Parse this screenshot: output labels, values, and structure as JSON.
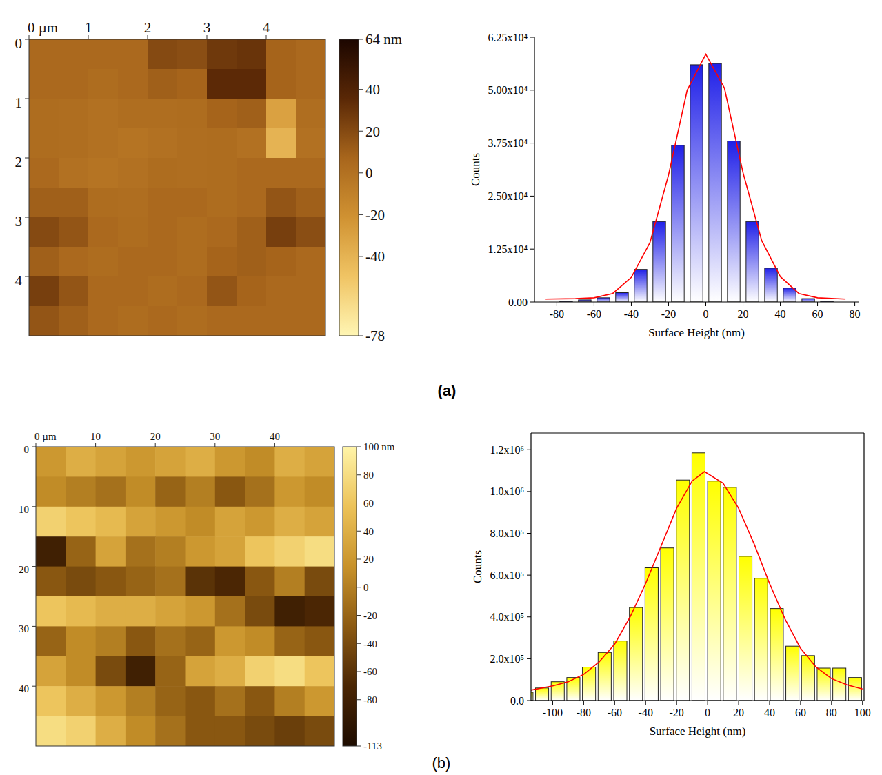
{
  "panel_labels": [
    "(a)",
    "(b)"
  ],
  "chart_data": [
    {
      "type": "heatmap",
      "xlim": [
        0,
        5
      ],
      "xticks": [
        {
          "value": 0,
          "label": "0 µm"
        },
        1,
        2,
        3,
        4
      ],
      "ylim": [
        0,
        5
      ],
      "yticks": [
        0,
        1,
        2,
        3,
        4
      ],
      "zlim": [
        -78,
        64
      ],
      "zticks": [
        {
          "value": 64,
          "label": "64 nm"
        },
        40,
        20,
        0,
        -20,
        -40,
        -78
      ],
      "colors": [
        "#fff6b4",
        "#f0c464",
        "#d09232",
        "#a8661c",
        "#5a2806",
        "#1c0600"
      ],
      "z": [
        [
          5,
          5,
          5,
          5,
          20,
          18,
          28,
          30,
          8,
          5
        ],
        [
          5,
          5,
          3,
          5,
          10,
          8,
          35,
          35,
          8,
          5
        ],
        [
          3,
          2,
          0,
          2,
          2,
          3,
          8,
          10,
          -30,
          2
        ],
        [
          3,
          2,
          0,
          -2,
          0,
          2,
          3,
          0,
          -40,
          0
        ],
        [
          5,
          0,
          -2,
          0,
          3,
          2,
          3,
          5,
          5,
          5
        ],
        [
          10,
          10,
          3,
          2,
          5,
          5,
          3,
          5,
          15,
          10
        ],
        [
          20,
          15,
          5,
          3,
          5,
          3,
          5,
          10,
          25,
          18
        ],
        [
          10,
          5,
          3,
          5,
          5,
          3,
          8,
          10,
          8,
          5
        ],
        [
          25,
          15,
          5,
          5,
          3,
          5,
          15,
          8,
          5,
          5
        ],
        [
          15,
          10,
          5,
          3,
          5,
          3,
          5,
          5,
          5,
          5
        ]
      ]
    },
    {
      "type": "histogram",
      "x_label": "Surface Height (nm)",
      "y_label": "Counts",
      "bins": [
        -80,
        -70,
        -60,
        -50,
        -40,
        -30,
        -20,
        -10,
        0,
        10,
        20,
        30,
        40,
        50,
        60,
        70
      ],
      "series": [
        {
          "type": "bar",
          "color": "#2020e8",
          "values": [
            200,
            500,
            1000,
            2200,
            7700,
            19000,
            37000,
            56000,
            56300,
            38000,
            19000,
            8000,
            3300,
            800,
            200
          ]
        },
        {
          "type": "line",
          "color": "#ff0000",
          "x": [
            -86,
            -70,
            -60,
            -50,
            -40,
            -30,
            -20,
            -10,
            0,
            10,
            20,
            30,
            40,
            50,
            60,
            75
          ],
          "values": [
            700,
            800,
            1000,
            2000,
            5800,
            14000,
            30000,
            50000,
            58500,
            50500,
            30500,
            14500,
            6000,
            2000,
            1000,
            700
          ]
        }
      ],
      "xlim": [
        -92,
        82
      ],
      "xticks": [
        -80,
        -60,
        -40,
        -20,
        0,
        20,
        40,
        60,
        80
      ],
      "ylim": [
        0,
        62500
      ],
      "yticks": [
        {
          "value": 0,
          "label": "0.00"
        },
        {
          "value": 12500,
          "label": "1.25x10⁴"
        },
        {
          "value": 25000,
          "label": "2.50x10⁴"
        },
        {
          "value": 37500,
          "label": "3.75x10⁴"
        },
        {
          "value": 50000,
          "label": "5.00x10⁴"
        },
        {
          "value": 62500,
          "label": "6.25x10⁴"
        }
      ]
    },
    {
      "type": "heatmap",
      "xlim": [
        0,
        50
      ],
      "xticks": [
        {
          "value": 0,
          "label": "0 µm"
        },
        10,
        20,
        30,
        40
      ],
      "ylim": [
        0,
        50
      ],
      "yticks": [
        0,
        10,
        20,
        30,
        40
      ],
      "zlim": [
        -113,
        100
      ],
      "zticks": [
        {
          "value": 100,
          "label": "100 nm"
        },
        80,
        60,
        40,
        20,
        0,
        -20,
        -40,
        -60,
        -80,
        -113
      ],
      "colors": [
        "#1e0c00",
        "#4a2604",
        "#8c5a12",
        "#c8922a",
        "#ecc258",
        "#fff4a8"
      ],
      "z": [
        [
          20,
          40,
          30,
          20,
          30,
          40,
          20,
          10,
          40,
          30
        ],
        [
          10,
          0,
          -10,
          10,
          -20,
          0,
          -30,
          -10,
          20,
          10
        ],
        [
          70,
          60,
          50,
          30,
          20,
          10,
          30,
          20,
          40,
          30
        ],
        [
          -80,
          -20,
          30,
          -10,
          0,
          20,
          30,
          60,
          70,
          80
        ],
        [
          -30,
          -40,
          -30,
          -20,
          -10,
          -60,
          -70,
          -30,
          0,
          -40
        ],
        [
          60,
          50,
          40,
          40,
          30,
          20,
          -10,
          -40,
          -80,
          -70
        ],
        [
          -20,
          10,
          0,
          -30,
          -10,
          -20,
          20,
          10,
          -20,
          -30
        ],
        [
          30,
          10,
          -40,
          -80,
          -20,
          30,
          40,
          70,
          80,
          60
        ],
        [
          60,
          40,
          20,
          0,
          -20,
          -30,
          -10,
          -30,
          0,
          20
        ],
        [
          80,
          70,
          40,
          10,
          -10,
          -30,
          -30,
          -40,
          -50,
          -40
        ]
      ]
    },
    {
      "type": "histogram",
      "x_label": "Surface Height (nm)",
      "y_label": "Counts",
      "bins": [
        -122,
        -111.9,
        -101.8,
        -91.7,
        -81.6,
        -71.5,
        -61.4,
        -51.3,
        -41.2,
        -31.1,
        -21,
        -10.9,
        -0.8,
        9.3,
        19.4,
        29.5,
        39.6,
        49.7,
        59.8,
        69.9,
        80,
        90.1,
        100.2
      ],
      "series": [
        {
          "type": "bar",
          "color": "#ffff00",
          "values": [
            40000,
            60000,
            90000,
            110000,
            160000,
            230000,
            285000,
            445000,
            635000,
            730000,
            1055000,
            1185000,
            1050000,
            1020000,
            690000,
            585000,
            440000,
            260000,
            215000,
            155000,
            155000,
            110000
          ]
        },
        {
          "type": "line",
          "color": "#ff0000",
          "x": [
            -114,
            -100,
            -90,
            -80,
            -70,
            -60,
            -50,
            -40,
            -30,
            -20,
            -10,
            -2,
            10,
            20,
            30,
            40,
            50,
            60,
            70,
            80,
            90,
            100
          ],
          "values": [
            50000,
            70000,
            90000,
            125000,
            185000,
            270000,
            400000,
            560000,
            740000,
            920000,
            1050000,
            1095000,
            1040000,
            920000,
            750000,
            560000,
            390000,
            250000,
            160000,
            105000,
            75000,
            55000
          ]
        }
      ],
      "xlim": [
        -114,
        101
      ],
      "xticks": [
        -100,
        -80,
        -60,
        -40,
        -20,
        0,
        20,
        40,
        60,
        80,
        100
      ],
      "ylim": [
        0,
        1280000
      ],
      "yticks": [
        {
          "value": 0,
          "label": "0.0"
        },
        {
          "value": 200000,
          "label": "2.0x10⁵"
        },
        {
          "value": 400000,
          "label": "4.0x10⁵"
        },
        {
          "value": 600000,
          "label": "6.0x10⁵"
        },
        {
          "value": 800000,
          "label": "8.0x10⁵"
        },
        {
          "value": 1000000,
          "label": "1.0x10⁶"
        },
        {
          "value": 1200000,
          "label": "1.2x10⁶"
        }
      ]
    }
  ]
}
